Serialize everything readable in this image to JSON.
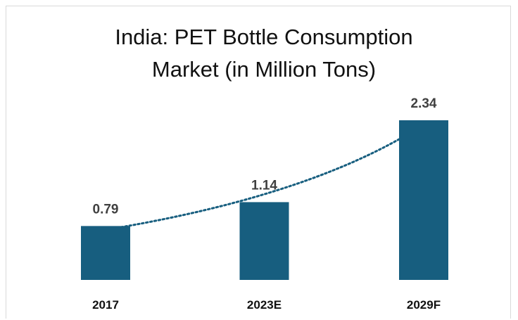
{
  "chart_data": {
    "type": "bar",
    "title": "India: PET Bottle Consumption Market (in Million Tons)",
    "categories": [
      "2017",
      "2023E",
      "2029F"
    ],
    "values": [
      0.79,
      1.14,
      2.34
    ],
    "color": "#175e7f"
  }
}
